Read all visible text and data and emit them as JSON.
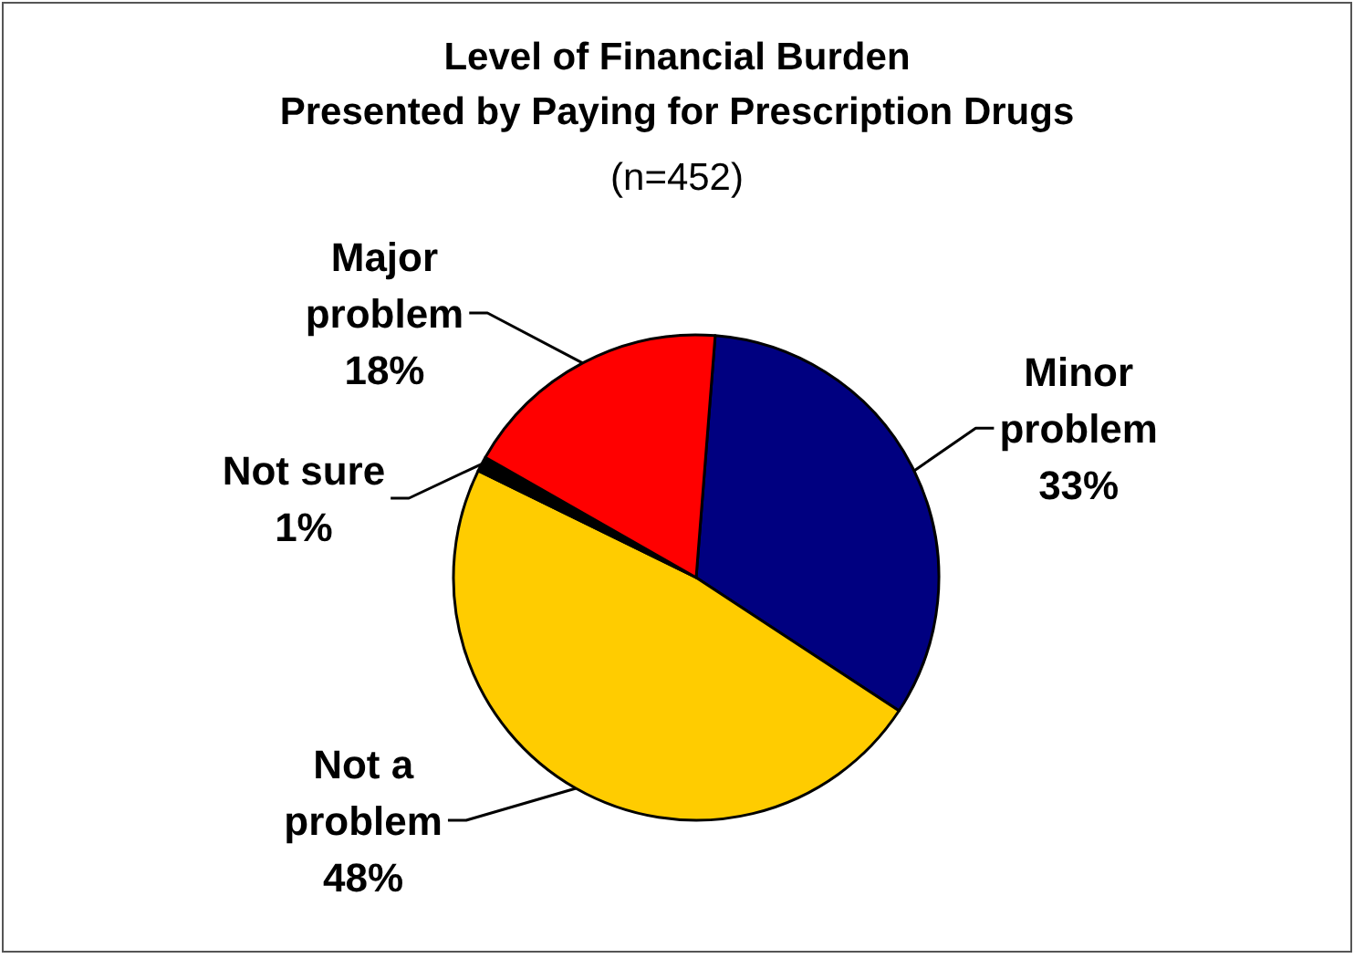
{
  "chart_data": {
    "type": "pie",
    "title": "Level of Financial Burden\nPresented by Paying for Prescription Drugs",
    "subtitle": "(n=452)",
    "categories": [
      "Minor problem",
      "Not a problem",
      "Not sure",
      "Major problem"
    ],
    "values": [
      33,
      48,
      1,
      18
    ],
    "colors": [
      "#000080",
      "#ffcc00",
      "#000000",
      "#ff0000"
    ],
    "value_labels": [
      "33%",
      "48%",
      "1%",
      "18%"
    ]
  }
}
